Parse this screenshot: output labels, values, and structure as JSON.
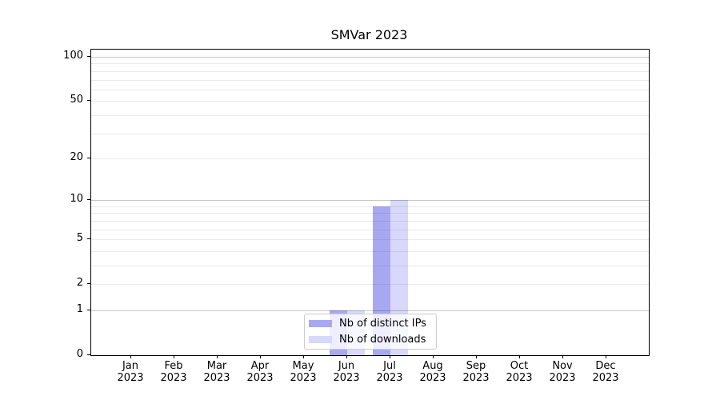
{
  "title": "SMVar 2023",
  "chart_data": {
    "type": "bar",
    "title": "SMVar 2023",
    "xlabel": "",
    "ylabel": "",
    "categories": [
      "Jan",
      "Feb",
      "Mar",
      "Apr",
      "May",
      "Jun",
      "Jul",
      "Aug",
      "Sep",
      "Oct",
      "Nov",
      "Dec"
    ],
    "category_year_line": "2023",
    "series": [
      {
        "name": "Nb of distinct IPs",
        "color": "#a8a8f2",
        "values": [
          0,
          0,
          0,
          0,
          0,
          1,
          9,
          0,
          0,
          0,
          0,
          0
        ]
      },
      {
        "name": "Nb of downloads",
        "color": "#d8d8fa",
        "values": [
          0,
          0,
          0,
          0,
          0,
          1,
          10,
          0,
          0,
          0,
          0,
          0
        ]
      }
    ],
    "yscale": "log1p",
    "ylim": [
      0,
      112
    ],
    "ytick_values": [
      0,
      1,
      2,
      5,
      10,
      20,
      50,
      100
    ],
    "ytick_labels": [
      "0",
      "1",
      "2",
      "5",
      "10",
      "20",
      "50",
      "100"
    ],
    "ygrid_major_values": [
      1,
      10,
      100
    ],
    "ygrid_minor_values": [
      2,
      3,
      4,
      5,
      6,
      7,
      8,
      9,
      20,
      30,
      40,
      50,
      60,
      70,
      80,
      90
    ],
    "grid": true,
    "legend_position": "lower center"
  },
  "legend": {
    "entries": [
      "Nb of distinct IPs",
      "Nb of downloads"
    ]
  },
  "colors": {
    "bar_distinct_ips": "#a8a8f2",
    "bar_downloads": "#d8d8fa",
    "grid_major": "#c8c8c8",
    "grid_minor": "#ebebeb",
    "legend_border": "#cccccc",
    "spine": "#000000"
  }
}
